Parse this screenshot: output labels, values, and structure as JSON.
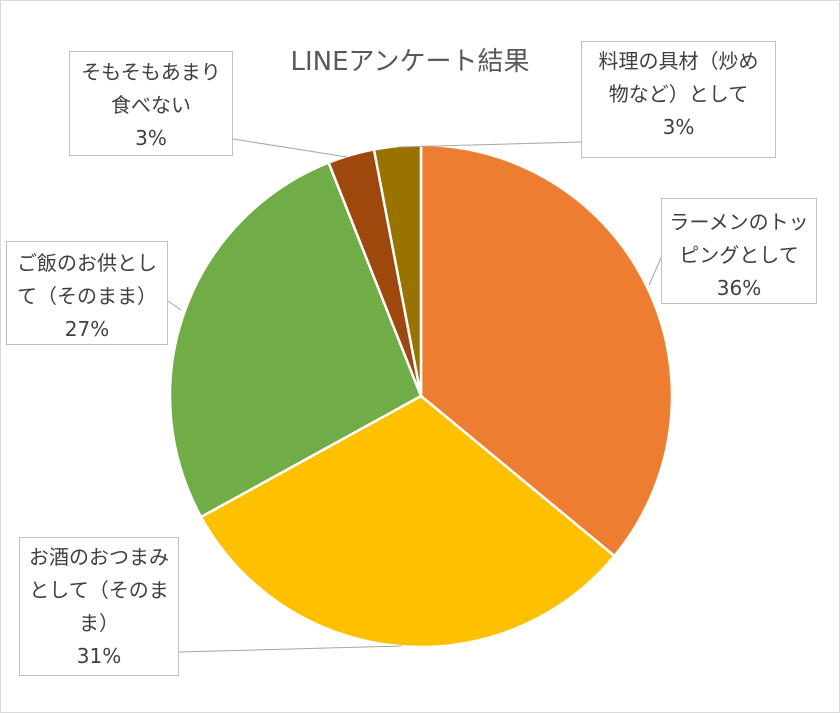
{
  "chart_data": {
    "type": "pie",
    "title": "LINEアンケート結果",
    "categories": [
      "ラーメンのトッピングとして",
      "お酒のおつまみとして（そのまま）",
      "ご飯のお供として（そのまま）",
      "そもそもあまり食べない",
      "料理の具材（炒め物など）として"
    ],
    "values": [
      36,
      31,
      27,
      3,
      3
    ],
    "value_labels": [
      "36%",
      "31%",
      "27%",
      "3%",
      "3%"
    ],
    "colors": [
      "#ED7D31",
      "#FFC000",
      "#70AD47",
      "#9E480E",
      "#997300"
    ],
    "legend": "none"
  }
}
